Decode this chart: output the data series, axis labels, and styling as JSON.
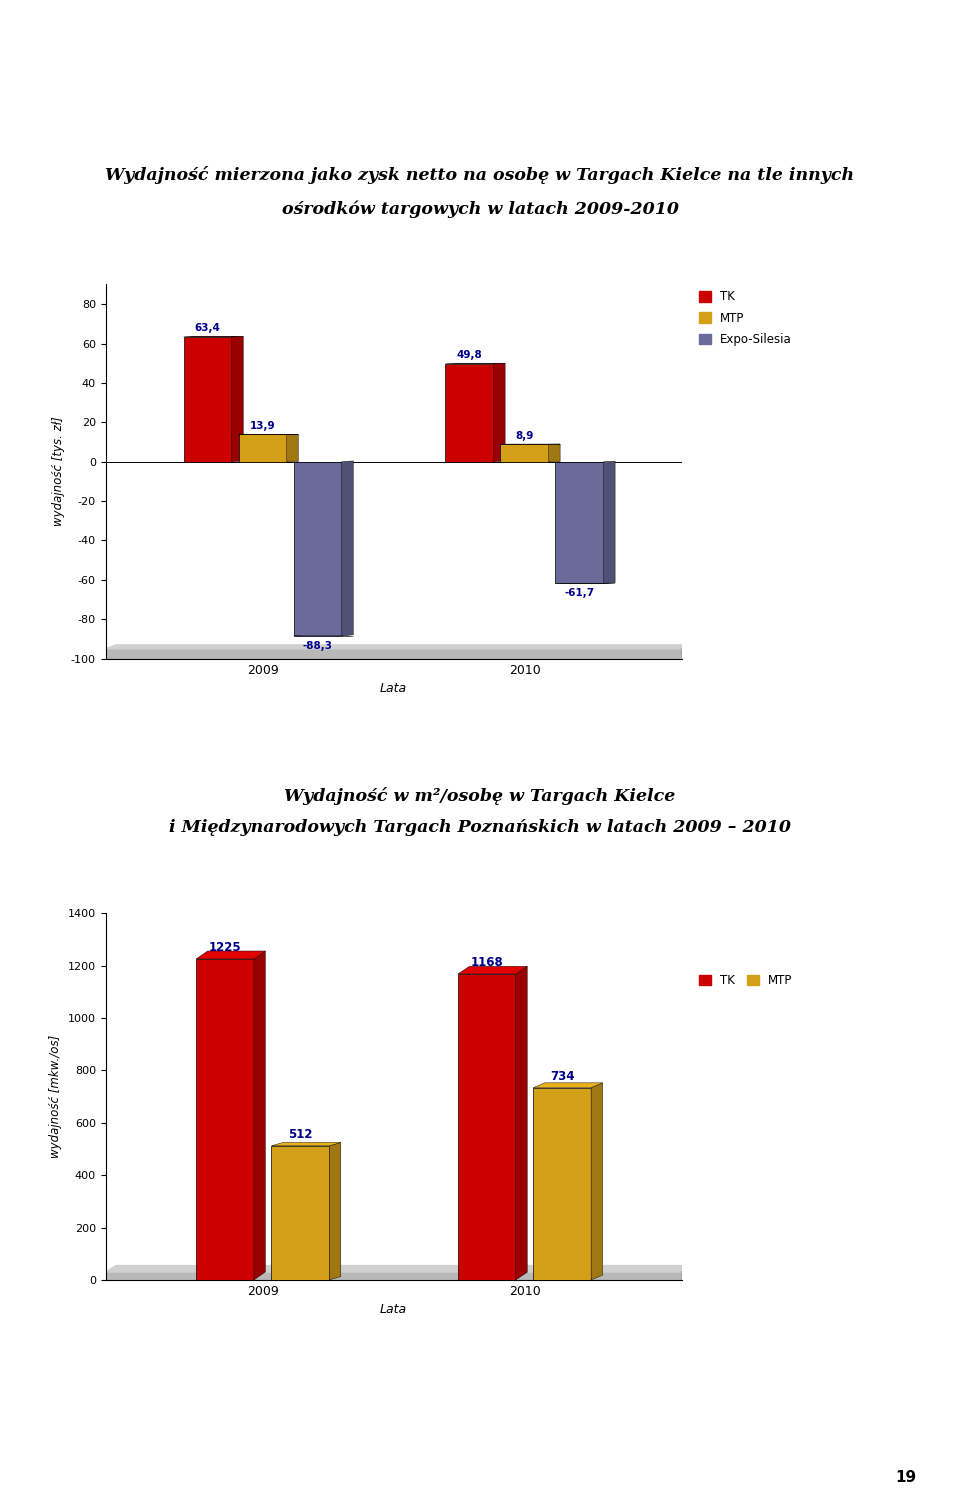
{
  "chart1": {
    "title_line1": "Wydajność mierzona jako zysk netto na osobę w Targach Kielce na tle innych",
    "title_line2": "ośrodków targowych w latach 2009-2010",
    "years": [
      "2009",
      "2010"
    ],
    "TK": [
      63.4,
      49.8
    ],
    "MTP": [
      13.9,
      8.9
    ],
    "Expo": [
      -88.3,
      -61.7
    ],
    "TK_color": "#CC0000",
    "MTP_color": "#D4A017",
    "Expo_color": "#6B6B9B",
    "ylabel": "wydajność [tys. zł]",
    "xlabel": "Lata",
    "ylim": [
      -100,
      90
    ],
    "yticks": [
      -100,
      -80,
      -60,
      -40,
      -20,
      0,
      20,
      40,
      60,
      80
    ]
  },
  "chart2": {
    "title_line1": "Wydajność w m²/osobę w Targach Kielce",
    "title_line2": "i Międzynarodowych Targach Poznańskich w latach 2009 – 2010",
    "years": [
      "2009",
      "2010"
    ],
    "TK": [
      1225,
      1168
    ],
    "MTP": [
      512,
      734
    ],
    "TK_color": "#CC0000",
    "MTP_color": "#D4A017",
    "ylabel": "wydajność [mkw./os]",
    "xlabel": "Lata",
    "ylim": [
      0,
      1400
    ],
    "yticks": [
      0,
      200,
      400,
      600,
      800,
      1000,
      1200,
      1400
    ]
  },
  "bg_color": "#FFFFFF",
  "label_color": "#00008B",
  "floor_color": "#B8B8B8",
  "page_number": "19"
}
